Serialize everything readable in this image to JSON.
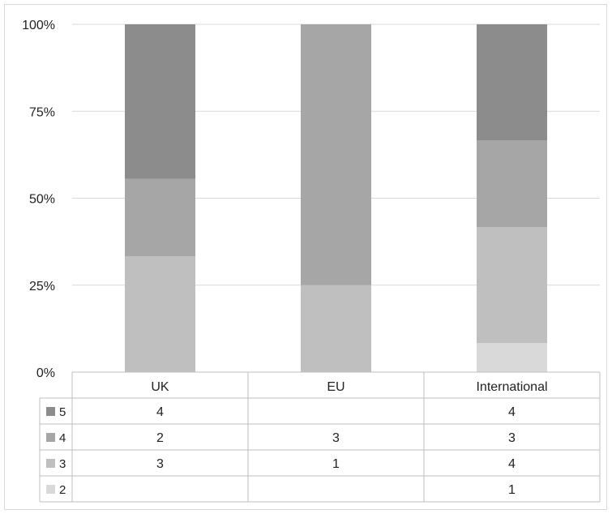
{
  "chart_data": {
    "type": "bar",
    "stacked": "percent",
    "categories": [
      "UK",
      "EU",
      "International"
    ],
    "series": [
      {
        "name": "5",
        "values": [
          4,
          null,
          4
        ],
        "color": "#8c8c8c"
      },
      {
        "name": "4",
        "values": [
          2,
          3,
          3
        ],
        "color": "#a6a6a6"
      },
      {
        "name": "3",
        "values": [
          3,
          1,
          4
        ],
        "color": "#bfbfbf"
      },
      {
        "name": "2",
        "values": [
          null,
          null,
          1
        ],
        "color": "#d9d9d9"
      }
    ],
    "y_ticks": [
      "0%",
      "25%",
      "50%",
      "75%",
      "100%"
    ],
    "ylim": [
      0,
      100
    ],
    "grid": true,
    "data_table": true,
    "legend": "in data table"
  }
}
